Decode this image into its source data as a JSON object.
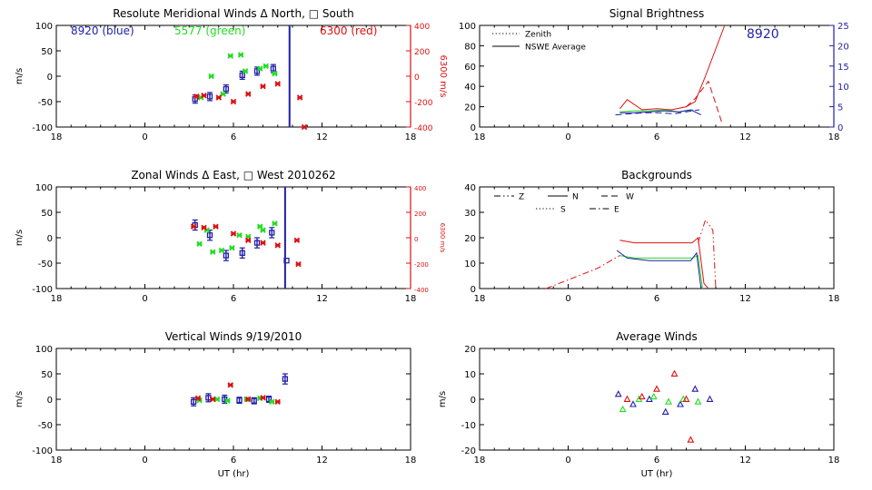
{
  "colors": {
    "blue": "#1f1fa8",
    "green": "#22dd22",
    "red": "#dd1111",
    "black": "#000000"
  },
  "chart_data": [
    {
      "type": "scatter",
      "title": "Resolute Meridional Winds Δ North, □ South",
      "xlabel": "",
      "ylabel": "m/s",
      "ylabel_right": "6300 m/s",
      "xticks": [
        "18",
        "0",
        "6",
        "12",
        "18"
      ],
      "yticks": [
        "100",
        "50",
        "0",
        "-50",
        "-100"
      ],
      "yticks_right": [
        "400",
        "200",
        "0",
        "-200",
        "-400"
      ],
      "ylim": [
        -100,
        100
      ],
      "annotations": [
        "8920 (blue)",
        "5577 (green)",
        "6300 (red)"
      ],
      "vline_x": 9.8,
      "series": [
        {
          "color": "blue",
          "x": [
            3.4,
            4.4,
            5.5,
            6.6,
            7.6,
            8.7
          ],
          "y": [
            -45,
            -40,
            -25,
            2,
            10,
            15
          ],
          "err": [
            8,
            8,
            8,
            8,
            8,
            8
          ]
        },
        {
          "color": "green",
          "x": [
            3.8,
            4.5,
            5.3,
            5.8,
            6.5,
            6.8,
            7.8,
            8.2,
            8.8
          ],
          "y": [
            -42,
            0,
            -35,
            40,
            42,
            10,
            15,
            20,
            5
          ]
        },
        {
          "color": "red",
          "x": [
            3.5,
            4.0,
            5.0,
            6.0,
            7.0,
            8.0,
            9.0,
            10.5,
            10.8
          ],
          "y": [
            -40,
            -38,
            -42,
            -50,
            -35,
            -20,
            -15,
            -42,
            -100
          ]
        }
      ]
    },
    {
      "type": "line",
      "title": "Signal Brightness",
      "xlabel": "",
      "ylabel": "",
      "xticks": [
        "18",
        "0",
        "6",
        "12",
        "18"
      ],
      "yticks": [
        "100",
        "80",
        "60",
        "40",
        "20",
        "0"
      ],
      "yticks_right": [
        "25",
        "20",
        "15",
        "10",
        "5",
        "0"
      ],
      "ylim": [
        0,
        100
      ],
      "annotations": [
        "8920"
      ],
      "legend": [
        {
          "label": "Zenith",
          "dash": "dotted"
        },
        {
          "label": "NSWE Average",
          "dash": "solid"
        }
      ],
      "series": [
        {
          "color": "red",
          "dash": "solid",
          "x": [
            3.5,
            4.0,
            5.0,
            6.0,
            7.0,
            8.0,
            8.6,
            9.3,
            10.6
          ],
          "y": [
            18,
            27,
            17,
            18,
            17,
            20,
            25,
            50,
            100
          ]
        },
        {
          "color": "red",
          "dash": "dashed",
          "x": [
            8.0,
            8.6,
            9.5,
            10.4
          ],
          "y": [
            20,
            28,
            45,
            5
          ]
        },
        {
          "color": "green",
          "dash": "solid",
          "x": [
            3.5,
            4.5,
            5.5,
            6.5,
            7.5,
            8.5
          ],
          "y": [
            15,
            16,
            16,
            17,
            15,
            17
          ]
        },
        {
          "color": "blue",
          "dash": "solid",
          "x": [
            3.5,
            4.5,
            5.5,
            6.5,
            7.5,
            8.3,
            9.0
          ],
          "y": [
            14,
            14,
            15,
            16,
            15,
            17,
            12
          ]
        },
        {
          "color": "blue",
          "dash": "dashed",
          "x": [
            3.2,
            4.2,
            5.2,
            6.2,
            7.2,
            8.0,
            8.9
          ],
          "y": [
            12,
            13,
            14,
            14,
            13,
            15,
            17
          ]
        }
      ]
    },
    {
      "type": "scatter",
      "title": "Zonal Winds Δ East, □ West 2010262",
      "xlabel": "",
      "ylabel": "m/s",
      "ylabel_right": "6300 m/s",
      "xticks": [
        "18",
        "0",
        "6",
        "12",
        "18"
      ],
      "yticks": [
        "100",
        "50",
        "0",
        "-50",
        "-100"
      ],
      "yticks_right": [
        "400",
        "200",
        "0",
        "-200",
        "-400"
      ],
      "ylim": [
        -100,
        100
      ],
      "vline_x": 9.5,
      "series": [
        {
          "color": "blue",
          "x": [
            3.4,
            4.4,
            5.5,
            6.6,
            7.6,
            8.6,
            9.6
          ],
          "y": [
            25,
            5,
            -35,
            -30,
            -10,
            10,
            -45
          ],
          "err": [
            10,
            10,
            10,
            10,
            10,
            10,
            0
          ]
        },
        {
          "color": "green",
          "x": [
            3.7,
            4.2,
            4.6,
            5.2,
            5.9,
            6.4,
            7.0,
            7.8,
            8.0,
            8.8
          ],
          "y": [
            -12,
            15,
            -28,
            -25,
            -20,
            5,
            2,
            22,
            15,
            28
          ]
        },
        {
          "color": "red",
          "x": [
            3.3,
            4.0,
            4.8,
            6.0,
            7.0,
            8.0,
            9.0,
            10.3,
            10.4
          ],
          "y": [
            22,
            20,
            22,
            8,
            -5,
            -10,
            -15,
            -5,
            -52
          ]
        }
      ]
    },
    {
      "type": "line",
      "title": "Backgrounds",
      "xlabel": "",
      "ylabel": "",
      "xticks": [
        "18",
        "0",
        "6",
        "12",
        "18"
      ],
      "yticks": [
        "40",
        "30",
        "20",
        "10",
        "0"
      ],
      "ylim": [
        0,
        40
      ],
      "legend": [
        {
          "label": "Z",
          "dash": "dashdotdot"
        },
        {
          "label": "N",
          "dash": "solid"
        },
        {
          "label": "W",
          "dash": "dashed"
        },
        {
          "label": "S",
          "dash": "dotted"
        },
        {
          "label": "E",
          "dash": "dashdot"
        }
      ],
      "series": [
        {
          "color": "red",
          "dash": "dashdot",
          "x": [
            -1.5,
            2.0,
            3.5
          ],
          "y": [
            0,
            8,
            13
          ]
        },
        {
          "color": "red",
          "dash": "solid",
          "x": [
            3.5,
            4.5,
            5.5,
            6.5,
            7.5,
            8.4,
            8.8,
            9.2,
            9.5
          ],
          "y": [
            19,
            18,
            18,
            18,
            18,
            18,
            20,
            2,
            0
          ]
        },
        {
          "color": "red",
          "dash": "dashdotdot",
          "x": [
            8.8,
            9.3,
            9.8,
            10.0
          ],
          "y": [
            18,
            27,
            23,
            0
          ]
        },
        {
          "color": "green",
          "dash": "solid",
          "x": [
            3.5,
            4.5,
            5.5,
            6.5,
            7.5,
            8.4,
            8.8,
            9.1
          ],
          "y": [
            13,
            12,
            12,
            12,
            12,
            12,
            13,
            0
          ]
        },
        {
          "color": "blue",
          "dash": "solid",
          "x": [
            3.3,
            4.0,
            5.5,
            7.0,
            8.3,
            8.7,
            9.0
          ],
          "y": [
            15,
            12,
            11,
            11,
            11,
            14,
            0
          ]
        }
      ]
    },
    {
      "type": "scatter",
      "title": "Vertical Winds 9/19/2010",
      "xlabel": "UT (hr)",
      "ylabel": "m/s",
      "xticks": [
        "18",
        "0",
        "6",
        "12",
        "18"
      ],
      "yticks": [
        "100",
        "50",
        "0",
        "-50",
        "-100"
      ],
      "ylim": [
        -100,
        100
      ],
      "series": [
        {
          "color": "blue",
          "x": [
            3.3,
            4.3,
            5.4,
            6.4,
            7.4,
            8.4,
            9.5
          ],
          "y": [
            -5,
            3,
            0,
            -2,
            -3,
            0,
            40
          ],
          "err": [
            8,
            8,
            8,
            6,
            6,
            6,
            10
          ]
        },
        {
          "color": "green",
          "x": [
            3.7,
            4.9,
            5.6,
            6.9,
            7.8,
            8.6
          ],
          "y": [
            -2,
            0,
            -3,
            0,
            2,
            -5
          ]
        },
        {
          "color": "red",
          "x": [
            3.6,
            4.6,
            5.8,
            7.0,
            8.0,
            9.0
          ],
          "y": [
            2,
            0,
            28,
            0,
            3,
            -5
          ]
        }
      ]
    },
    {
      "type": "scatter",
      "title": "Average Winds",
      "xlabel": "UT (hr)",
      "ylabel": "m/s",
      "xticks": [
        "18",
        "0",
        "6",
        "12",
        "18"
      ],
      "yticks": [
        "20",
        "10",
        "0",
        "-10",
        "-20"
      ],
      "ylim": [
        -20,
        20
      ],
      "series": [
        {
          "color": "blue",
          "x": [
            3.4,
            4.4,
            5.5,
            6.6,
            7.6,
            8.6,
            9.6
          ],
          "y": [
            2,
            -2,
            0,
            -5,
            -2,
            4,
            0
          ]
        },
        {
          "color": "green",
          "x": [
            3.7,
            4.8,
            5.8,
            6.8,
            7.8,
            8.8
          ],
          "y": [
            -4,
            0,
            1,
            -1,
            0,
            -1
          ]
        },
        {
          "color": "red",
          "x": [
            4.0,
            5.0,
            6.0,
            7.2,
            8.0,
            8.3
          ],
          "y": [
            0,
            1,
            4,
            10,
            0,
            -16
          ]
        }
      ]
    }
  ]
}
